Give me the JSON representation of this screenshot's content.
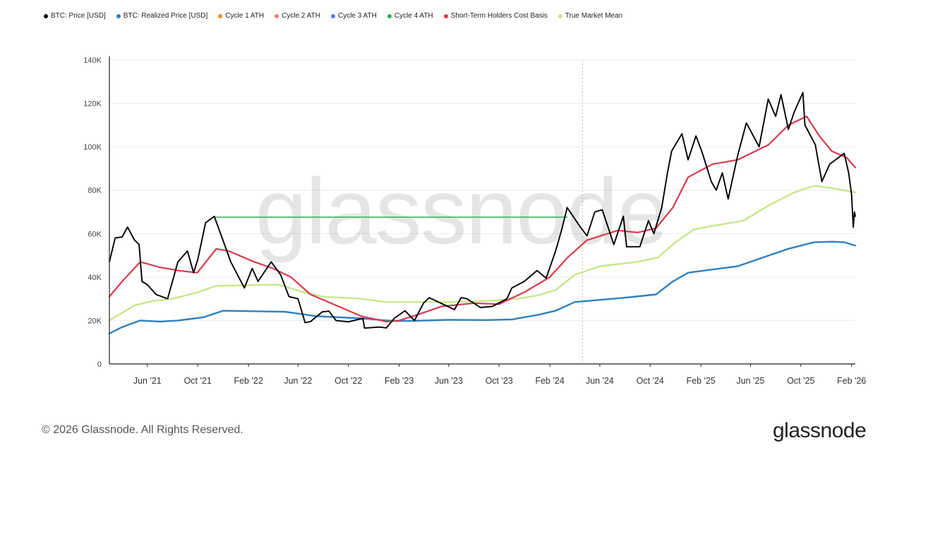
{
  "chart_data": {
    "type": "line",
    "ylim": [
      0,
      140000
    ],
    "y_ticks": [
      "0",
      "20K",
      "40K",
      "60K",
      "80K",
      "100K",
      "120K",
      "140K"
    ],
    "x_ticks": [
      "Jun '21",
      "Oct '21",
      "Feb '22",
      "Jun '22",
      "Oct '22",
      "Feb '23",
      "Jun '23",
      "Oct '23",
      "Feb '24",
      "Jun '24",
      "Oct '24",
      "Feb '25",
      "Jun '25",
      "Oct '25",
      "Feb '26"
    ],
    "x_range": [
      "2021-03-01",
      "2026-02-10"
    ],
    "grid": true,
    "legend_position": "top-left",
    "watermark": "glassnode",
    "series": [
      {
        "name": "BTC: Price [USD]",
        "color": "#000000",
        "points": [
          [
            "2021-03-01",
            47000
          ],
          [
            "2021-03-15",
            58000
          ],
          [
            "2021-04-01",
            58500
          ],
          [
            "2021-04-14",
            63000
          ],
          [
            "2021-05-01",
            57000
          ],
          [
            "2021-05-12",
            55000
          ],
          [
            "2021-05-19",
            38000
          ],
          [
            "2021-06-01",
            36500
          ],
          [
            "2021-06-22",
            32000
          ],
          [
            "2021-07-20",
            30000
          ],
          [
            "2021-08-14",
            47000
          ],
          [
            "2021-09-06",
            52000
          ],
          [
            "2021-09-21",
            42000
          ],
          [
            "2021-10-01",
            48000
          ],
          [
            "2021-10-20",
            65000
          ],
          [
            "2021-11-10",
            68000
          ],
          [
            "2021-12-01",
            57000
          ],
          [
            "2021-12-20",
            47000
          ],
          [
            "2022-01-22",
            35000
          ],
          [
            "2022-02-10",
            44000
          ],
          [
            "2022-02-24",
            38000
          ],
          [
            "2022-03-28",
            47000
          ],
          [
            "2022-04-20",
            41000
          ],
          [
            "2022-05-10",
            31000
          ],
          [
            "2022-06-01",
            30000
          ],
          [
            "2022-06-18",
            19000
          ],
          [
            "2022-07-01",
            19500
          ],
          [
            "2022-07-30",
            24000
          ],
          [
            "2022-08-15",
            24300
          ],
          [
            "2022-09-01",
            20000
          ],
          [
            "2022-10-01",
            19400
          ],
          [
            "2022-11-05",
            21000
          ],
          [
            "2022-11-09",
            16500
          ],
          [
            "2022-12-15",
            17000
          ],
          [
            "2023-01-01",
            16600
          ],
          [
            "2023-01-20",
            21000
          ],
          [
            "2023-02-15",
            24500
          ],
          [
            "2023-03-10",
            20000
          ],
          [
            "2023-04-01",
            28000
          ],
          [
            "2023-04-15",
            30500
          ],
          [
            "2023-06-15",
            25000
          ],
          [
            "2023-07-01",
            30500
          ],
          [
            "2023-07-15",
            30000
          ],
          [
            "2023-08-17",
            26000
          ],
          [
            "2023-09-15",
            26500
          ],
          [
            "2023-10-20",
            30000
          ],
          [
            "2023-11-01",
            35000
          ],
          [
            "2023-12-01",
            38000
          ],
          [
            "2024-01-01",
            43000
          ],
          [
            "2024-01-23",
            39500
          ],
          [
            "2024-02-15",
            52000
          ],
          [
            "2024-03-01",
            62000
          ],
          [
            "2024-03-14",
            72000
          ],
          [
            "2024-04-15",
            63000
          ],
          [
            "2024-05-01",
            59000
          ],
          [
            "2024-05-20",
            70000
          ],
          [
            "2024-06-07",
            71000
          ],
          [
            "2024-07-05",
            55000
          ],
          [
            "2024-07-28",
            68000
          ],
          [
            "2024-08-05",
            54000
          ],
          [
            "2024-09-06",
            54000
          ],
          [
            "2024-09-27",
            66000
          ],
          [
            "2024-10-10",
            60000
          ],
          [
            "2024-10-29",
            72000
          ],
          [
            "2024-11-12",
            88000
          ],
          [
            "2024-11-22",
            98000
          ],
          [
            "2024-12-17",
            106000
          ],
          [
            "2025-01-01",
            94000
          ],
          [
            "2025-01-20",
            105000
          ],
          [
            "2025-02-03",
            98000
          ],
          [
            "2025-02-26",
            84000
          ],
          [
            "2025-03-10",
            80000
          ],
          [
            "2025-03-25",
            88000
          ],
          [
            "2025-04-08",
            76000
          ],
          [
            "2025-05-01",
            96000
          ],
          [
            "2025-05-22",
            111000
          ],
          [
            "2025-06-22",
            100000
          ],
          [
            "2025-07-14",
            122000
          ],
          [
            "2025-08-01",
            114000
          ],
          [
            "2025-08-14",
            124000
          ],
          [
            "2025-09-01",
            108000
          ],
          [
            "2025-09-15",
            116000
          ],
          [
            "2025-10-06",
            125000
          ],
          [
            "2025-10-11",
            110000
          ],
          [
            "2025-11-05",
            101000
          ],
          [
            "2025-11-21",
            84000
          ],
          [
            "2025-12-10",
            92000
          ],
          [
            "2026-01-14",
            97000
          ],
          [
            "2026-01-25",
            88000
          ],
          [
            "2026-02-01",
            78000
          ],
          [
            "2026-02-05",
            63000
          ],
          [
            "2026-02-08",
            70000
          ],
          [
            "2026-02-10",
            68000
          ]
        ]
      },
      {
        "name": "BTC: Realized Price [USD]",
        "color": "#2f80c0",
        "points": [
          [
            "2021-03-01",
            14000
          ],
          [
            "2021-04-01",
            17000
          ],
          [
            "2021-05-15",
            20000
          ],
          [
            "2021-07-01",
            19500
          ],
          [
            "2021-08-15",
            20000
          ],
          [
            "2021-10-15",
            21500
          ],
          [
            "2021-12-01",
            24500
          ],
          [
            "2022-05-01",
            24000
          ],
          [
            "2022-07-15",
            22000
          ],
          [
            "2022-11-01",
            21000
          ],
          [
            "2023-01-15",
            19800
          ],
          [
            "2023-03-01",
            19800
          ],
          [
            "2023-06-01",
            20300
          ],
          [
            "2023-09-01",
            20200
          ],
          [
            "2023-11-01",
            20500
          ],
          [
            "2024-01-01",
            22500
          ],
          [
            "2024-02-15",
            24500
          ],
          [
            "2024-04-01",
            28500
          ],
          [
            "2024-06-01",
            29500
          ],
          [
            "2024-08-01",
            30500
          ],
          [
            "2024-10-15",
            32000
          ],
          [
            "2024-11-25",
            38000
          ],
          [
            "2025-01-01",
            42000
          ],
          [
            "2025-03-01",
            43500
          ],
          [
            "2025-05-01",
            45000
          ],
          [
            "2025-07-01",
            49000
          ],
          [
            "2025-09-01",
            53000
          ],
          [
            "2025-11-01",
            56000
          ],
          [
            "2025-12-15",
            56300
          ],
          [
            "2026-01-15",
            56000
          ],
          [
            "2026-02-10",
            54500
          ]
        ]
      },
      {
        "name": "Cycle 1 ATH",
        "color": "#f0901a",
        "points": []
      },
      {
        "name": "Cycle 2 ATH",
        "color": "#f08080",
        "points": []
      },
      {
        "name": "Cycle 3 ATH",
        "color": "#4a7fe8",
        "points": []
      },
      {
        "name": "Cycle 4 ATH",
        "color": "#2db54a",
        "points": [
          [
            "2021-11-10",
            67600
          ],
          [
            "2024-03-14",
            67600
          ]
        ]
      },
      {
        "name": "Short-Term Holders Cost Basis",
        "color": "#d83a4e",
        "points": [
          [
            "2021-03-01",
            31000
          ],
          [
            "2021-04-01",
            38000
          ],
          [
            "2021-05-15",
            47000
          ],
          [
            "2021-07-01",
            44500
          ],
          [
            "2021-08-15",
            43000
          ],
          [
            "2021-09-30",
            42000
          ],
          [
            "2021-11-15",
            53000
          ],
          [
            "2021-12-15",
            52000
          ],
          [
            "2022-02-15",
            47000
          ],
          [
            "2022-04-01",
            44000
          ],
          [
            "2022-05-15",
            40000
          ],
          [
            "2022-07-01",
            32000
          ],
          [
            "2022-09-01",
            27000
          ],
          [
            "2022-11-01",
            22000
          ],
          [
            "2023-01-01",
            19500
          ],
          [
            "2023-02-01",
            20000
          ],
          [
            "2023-03-15",
            22500
          ],
          [
            "2023-05-15",
            26500
          ],
          [
            "2023-08-01",
            28000
          ],
          [
            "2023-10-01",
            27500
          ],
          [
            "2023-12-01",
            33000
          ],
          [
            "2024-02-01",
            40000
          ],
          [
            "2024-03-15",
            49000
          ],
          [
            "2024-05-01",
            57000
          ],
          [
            "2024-07-15",
            61500
          ],
          [
            "2024-09-01",
            60500
          ],
          [
            "2024-10-15",
            62500
          ],
          [
            "2024-11-25",
            72000
          ],
          [
            "2025-01-01",
            86000
          ],
          [
            "2025-03-01",
            92000
          ],
          [
            "2025-05-01",
            94000
          ],
          [
            "2025-07-15",
            101000
          ],
          [
            "2025-09-01",
            110000
          ],
          [
            "2025-10-15",
            114000
          ],
          [
            "2025-11-15",
            105000
          ],
          [
            "2025-12-15",
            98000
          ],
          [
            "2026-01-20",
            95000
          ],
          [
            "2026-02-10",
            90500
          ]
        ]
      },
      {
        "name": "True Market Mean",
        "color": "#c8e68a",
        "points": [
          [
            "2021-03-01",
            20000
          ],
          [
            "2021-05-01",
            27000
          ],
          [
            "2021-06-15",
            29000
          ],
          [
            "2021-08-01",
            30000
          ],
          [
            "2021-10-01",
            33000
          ],
          [
            "2021-11-15",
            36000
          ],
          [
            "2022-04-15",
            36500
          ],
          [
            "2022-06-15",
            33000
          ],
          [
            "2022-08-01",
            31000
          ],
          [
            "2022-11-01",
            30000
          ],
          [
            "2023-01-01",
            28500
          ],
          [
            "2023-06-01",
            28500
          ],
          [
            "2023-09-01",
            29000
          ],
          [
            "2023-11-15",
            30000
          ],
          [
            "2024-01-01",
            31500
          ],
          [
            "2024-02-15",
            34000
          ],
          [
            "2024-04-01",
            41000
          ],
          [
            "2024-06-01",
            45000
          ],
          [
            "2024-09-01",
            47000
          ],
          [
            "2024-10-20",
            49000
          ],
          [
            "2024-12-01",
            56000
          ],
          [
            "2025-01-15",
            62000
          ],
          [
            "2025-03-15",
            64000
          ],
          [
            "2025-05-15",
            66000
          ],
          [
            "2025-07-15",
            73000
          ],
          [
            "2025-09-15",
            79000
          ],
          [
            "2025-11-01",
            82000
          ],
          [
            "2025-12-15",
            81000
          ],
          [
            "2026-02-10",
            79000
          ]
        ]
      }
    ]
  },
  "footer": {
    "copyright": "© 2026 Glassnode. All Rights Reserved.",
    "logo_text": "glassnode"
  }
}
